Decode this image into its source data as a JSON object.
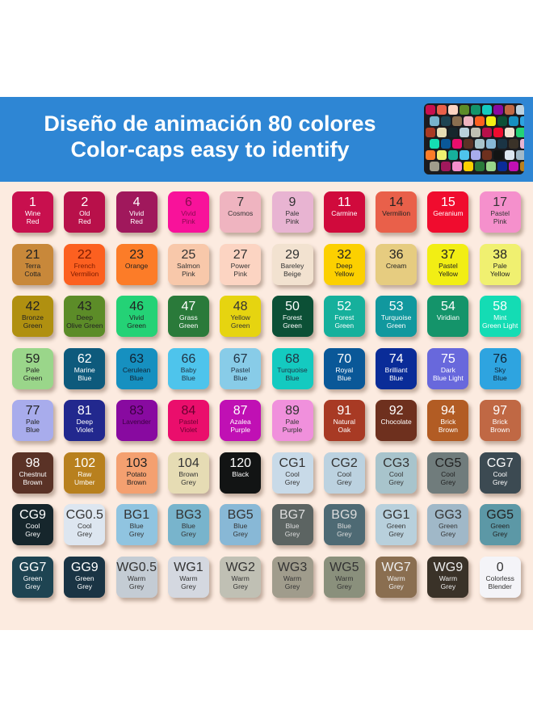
{
  "banner": {
    "title_line1": "Diseño de animación 80 colores",
    "title_line2": "Color-caps easy to identify",
    "background": "#2e86d4"
  },
  "swatches": [
    {
      "code": "1",
      "name": "Wine\nRed",
      "color": "#c8104e",
      "text": "#fff"
    },
    {
      "code": "2",
      "name": "Old\nRed",
      "color": "#b8104a",
      "text": "#fff"
    },
    {
      "code": "4",
      "name": "Vivid\nRed",
      "color": "#a0185c",
      "text": "#fff"
    },
    {
      "code": "6",
      "name": "Vivid\nPink",
      "color": "#f8129a",
      "text": "#8a0a50"
    },
    {
      "code": "7",
      "name": "Cosmos",
      "color": "#efb4c0",
      "text": "#333"
    },
    {
      "code": "9",
      "name": "Pale\nPink",
      "color": "#e8b4d2",
      "text": "#333"
    },
    {
      "code": "11",
      "name": "Carmine",
      "color": "#d00a3c",
      "text": "#fff"
    },
    {
      "code": "14",
      "name": "Vermilion",
      "color": "#e9604a",
      "text": "#222"
    },
    {
      "code": "15",
      "name": "Geranium",
      "color": "#f00c2e",
      "text": "#fff"
    },
    {
      "code": "17",
      "name": "Pastel\nPink",
      "color": "#f590cc",
      "text": "#333"
    },
    {
      "code": "21",
      "name": "Terra\nCotta",
      "color": "#c8883a",
      "text": "#222"
    },
    {
      "code": "22",
      "name": "French\nVermilion",
      "color": "#fc6020",
      "text": "#7a1a00"
    },
    {
      "code": "23",
      "name": "Orange",
      "color": "#fc7c28",
      "text": "#222"
    },
    {
      "code": "25",
      "name": "Salmon\nPink",
      "color": "#f8c8aa",
      "text": "#333"
    },
    {
      "code": "27",
      "name": "Power\nPink",
      "color": "#fcd4c2",
      "text": "#333"
    },
    {
      "code": "29",
      "name": "Bareley\nBeige",
      "color": "#f2e2d0",
      "text": "#333"
    },
    {
      "code": "32",
      "name": "Deep\nYellow",
      "color": "#fcd000",
      "text": "#222"
    },
    {
      "code": "36",
      "name": "Cream",
      "color": "#e6cc80",
      "text": "#222"
    },
    {
      "code": "37",
      "name": "Pastel\nYellow",
      "color": "#f2ee14",
      "text": "#222"
    },
    {
      "code": "38",
      "name": "Pale\nYellow",
      "color": "#f0f070",
      "text": "#222"
    },
    {
      "code": "42",
      "name": "Bronze\nGreen",
      "color": "#b09010",
      "text": "#222"
    },
    {
      "code": "43",
      "name": "Deep\nOlive Green",
      "color": "#5c8c28",
      "text": "#222"
    },
    {
      "code": "46",
      "name": "Vivid\nGreen",
      "color": "#24d276",
      "text": "#222"
    },
    {
      "code": "47",
      "name": "Grass\nGreen",
      "color": "#2a7a3a",
      "text": "#fff"
    },
    {
      "code": "48",
      "name": "Yellow\nGreen",
      "color": "#e6d410",
      "text": "#333"
    },
    {
      "code": "50",
      "name": "Forest\nGreen",
      "color": "#0c5036",
      "text": "#fff"
    },
    {
      "code": "52",
      "name": "Forest\nGreen",
      "color": "#16b09c",
      "text": "#fff"
    },
    {
      "code": "53",
      "name": "Turquoise\nGreen",
      "color": "#11989e",
      "text": "#fff"
    },
    {
      "code": "54",
      "name": "Viridian",
      "color": "#14946a",
      "text": "#fff"
    },
    {
      "code": "58",
      "name": "Mint\nGreen Light",
      "color": "#14dcb4",
      "text": "#fff"
    },
    {
      "code": "59",
      "name": "Pale\nGreen",
      "color": "#9ad68a",
      "text": "#222"
    },
    {
      "code": "62",
      "name": "Marine\nBlue",
      "color": "#0e5a7c",
      "text": "#fff"
    },
    {
      "code": "63",
      "name": "Cerulean\nBlue",
      "color": "#1690c0",
      "text": "#123"
    },
    {
      "code": "66",
      "name": "Baby\nBlue",
      "color": "#4ec4ec",
      "text": "#234"
    },
    {
      "code": "67",
      "name": "Pastel\nBlue",
      "color": "#88cce8",
      "text": "#234"
    },
    {
      "code": "68",
      "name": "Turquoise\nBlue",
      "color": "#14cac0",
      "text": "#234"
    },
    {
      "code": "70",
      "name": "Royal\nBlue",
      "color": "#0a5898",
      "text": "#fff"
    },
    {
      "code": "74",
      "name": "Brilliant\nBlue",
      "color": "#0a2c98",
      "text": "#fff"
    },
    {
      "code": "75",
      "name": "Dark\nBlue Light",
      "color": "#6868dc",
      "text": "#fff"
    },
    {
      "code": "76",
      "name": "Sky\nBlue",
      "color": "#2ea4e0",
      "text": "#123"
    },
    {
      "code": "77",
      "name": "Pale\nBlue",
      "color": "#a8acec",
      "text": "#222"
    },
    {
      "code": "81",
      "name": "Deep\nViolet",
      "color": "#22288e",
      "text": "#fff"
    },
    {
      "code": "83",
      "name": "Lavender",
      "color": "#880aa0",
      "text": "#3a0040"
    },
    {
      "code": "84",
      "name": "Pastel\nViolet",
      "color": "#ea0e6c",
      "text": "#6a0030"
    },
    {
      "code": "87",
      "name": "Azalea\nPurple",
      "color": "#c010b4",
      "text": "#fff"
    },
    {
      "code": "89",
      "name": "Pale\nPurple",
      "color": "#f090dc",
      "text": "#333"
    },
    {
      "code": "91",
      "name": "Natural\nOak",
      "color": "#a83a24",
      "text": "#fff"
    },
    {
      "code": "92",
      "name": "Chocolate",
      "color": "#6e301e",
      "text": "#fff"
    },
    {
      "code": "94",
      "name": "Brick\nBrown",
      "color": "#b25c24",
      "text": "#fff"
    },
    {
      "code": "97",
      "name": "Brick\nBrown",
      "color": "#c06844",
      "text": "#fff"
    },
    {
      "code": "98",
      "name": "Chestnut\nBrown",
      "color": "#5a3226",
      "text": "#fff"
    },
    {
      "code": "102",
      "name": "Raw\nUmber",
      "color": "#b8801e",
      "text": "#fff"
    },
    {
      "code": "103",
      "name": "Potato\nBrown",
      "color": "#f4a070",
      "text": "#222"
    },
    {
      "code": "104",
      "name": "Brown\nGrey",
      "color": "#e6dcb4",
      "text": "#333"
    },
    {
      "code": "120",
      "name": "Black",
      "color": "#121414",
      "text": "#fff"
    },
    {
      "code": "CG1",
      "name": "Cool\nGrey",
      "color": "#c8dae8",
      "text": "#333"
    },
    {
      "code": "CG2",
      "name": "Cool\nGrey",
      "color": "#bcd2e0",
      "text": "#333"
    },
    {
      "code": "CG3",
      "name": "Cool\nGrey",
      "color": "#a8c4cc",
      "text": "#333"
    },
    {
      "code": "CG5",
      "name": "Cool\nGrey",
      "color": "#707c7c",
      "text": "#222"
    },
    {
      "code": "CG7",
      "name": "Cool\nGrey",
      "color": "#3c4a52",
      "text": "#fff"
    },
    {
      "code": "CG9",
      "name": "Cool\nGrey",
      "color": "#16262c",
      "text": "#fff"
    },
    {
      "code": "CG0.5",
      "name": "Cool\nGrey",
      "color": "#dde6f0",
      "text": "#333"
    },
    {
      "code": "BG1",
      "name": "Blue\nGrey",
      "color": "#90c4e0",
      "text": "#333"
    },
    {
      "code": "BG3",
      "name": "Blue\nGrey",
      "color": "#78b4cc",
      "text": "#333"
    },
    {
      "code": "BG5",
      "name": "Blue\nGrey",
      "color": "#88b8d6",
      "text": "#333"
    },
    {
      "code": "BG7",
      "name": "Blue\nGrey",
      "color": "#5c6462",
      "text": "#ddd"
    },
    {
      "code": "BG9",
      "name": "Blue\nGrey",
      "color": "#4e6a74",
      "text": "#ddd"
    },
    {
      "code": "GG1",
      "name": "Green\nGrey",
      "color": "#b8d0dc",
      "text": "#333"
    },
    {
      "code": "GG3",
      "name": "Green\nGrey",
      "color": "#a0b8c8",
      "text": "#333"
    },
    {
      "code": "GG5",
      "name": "Green\nGrey",
      "color": "#5c98a6",
      "text": "#222"
    },
    {
      "code": "GG7",
      "name": "Green\nGrey",
      "color": "#1e4452",
      "text": "#fff"
    },
    {
      "code": "GG9",
      "name": "Green\nGrey",
      "color": "#1a3444",
      "text": "#fff"
    },
    {
      "code": "WG0.5",
      "name": "Warm\nGrey",
      "color": "#c4ccd4",
      "text": "#333"
    },
    {
      "code": "WG1",
      "name": "Warm\nGrey",
      "color": "#d4d8e0",
      "text": "#333"
    },
    {
      "code": "WG2",
      "name": "Warm\nGrey",
      "color": "#c0c0b4",
      "text": "#333"
    },
    {
      "code": "WG3",
      "name": "Warm\nGrey",
      "color": "#a09c8c",
      "text": "#333"
    },
    {
      "code": "WG5",
      "name": "Warm\nGrey",
      "color": "#8a907c",
      "text": "#333"
    },
    {
      "code": "WG7",
      "name": "Warm\nGrey",
      "color": "#8a6e50",
      "text": "#eee"
    },
    {
      "code": "WG9",
      "name": "Warm\nGrey",
      "color": "#3a3228",
      "text": "#eee"
    },
    {
      "code": "0",
      "name": "Colorless\nBlender",
      "color": "#f4f4f8",
      "text": "#333"
    }
  ]
}
